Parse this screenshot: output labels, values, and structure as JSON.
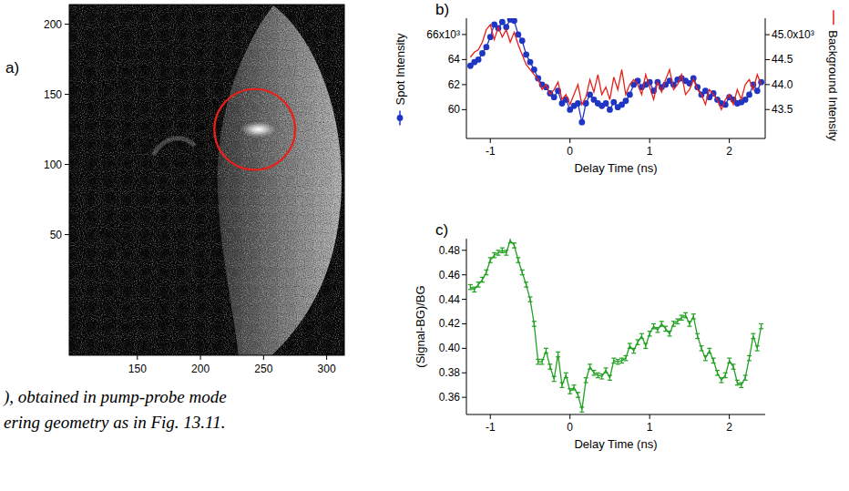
{
  "chart_data": [
    {
      "panel": "a)",
      "type": "image",
      "xlim": [
        96,
        314
      ],
      "ylim": [
        -36,
        214
      ],
      "xticks": [
        150,
        200,
        250,
        300
      ],
      "yticks": [
        50,
        100,
        150,
        200
      ],
      "annotations": [
        {
          "type": "circle",
          "x": 243,
          "y": 125,
          "r": 32,
          "color": "#e8201a"
        }
      ]
    },
    {
      "panel": "b)",
      "type": "line",
      "xlabel": "Delay Time  (ns)",
      "xlim": [
        -1.3,
        2.45
      ],
      "xticks": [
        -1,
        0,
        1,
        2
      ],
      "ylim": [
        57.7,
        67.3
      ],
      "yticks": [
        60,
        62,
        64,
        {
          "value": 66,
          "label": "66x10³"
        }
      ],
      "y2lim": [
        42.92,
        45.33
      ],
      "y2ticks": [
        43.5,
        {
          "value": 44,
          "label": "44.0"
        },
        44.5,
        {
          "value": 45,
          "label": "45.0x10³"
        }
      ],
      "x": [
        -1.25,
        -1.2,
        -1.15,
        -1.1,
        -1.05,
        -1,
        -0.95,
        -0.9,
        -0.85,
        -0.8,
        -0.75,
        -0.7,
        -0.65,
        -0.6,
        -0.55,
        -0.5,
        -0.45,
        -0.4,
        -0.35,
        -0.3,
        -0.25,
        -0.2,
        -0.15,
        -0.1,
        -0.05,
        0,
        0.05,
        0.1,
        0.15,
        0.2,
        0.25,
        0.3,
        0.35,
        0.4,
        0.45,
        0.5,
        0.55,
        0.6,
        0.65,
        0.7,
        0.75,
        0.8,
        0.85,
        0.9,
        0.95,
        1,
        1.05,
        1.1,
        1.15,
        1.2,
        1.25,
        1.3,
        1.35,
        1.4,
        1.45,
        1.5,
        1.55,
        1.6,
        1.65,
        1.7,
        1.75,
        1.8,
        1.85,
        1.9,
        1.95,
        2,
        2.05,
        2.1,
        2.15,
        2.2,
        2.25,
        2.3,
        2.35,
        2.4
      ],
      "series": [
        {
          "name": "Spot Intensity",
          "color": "#1f35c4",
          "marker": "circle",
          "line_style": "solid",
          "values": [
            63.5,
            63.8,
            64.0,
            64.5,
            65.0,
            65.8,
            66.8,
            66.5,
            67.0,
            66.6,
            67.2,
            67.1,
            66.0,
            65.5,
            64.4,
            63.8,
            63.2,
            62.5,
            62.0,
            61.8,
            61.3,
            61.0,
            61.5,
            60.5,
            60.8,
            60.0,
            60.3,
            60.5,
            59.0,
            60.5,
            61.2,
            60.8,
            60.5,
            60.3,
            60.5,
            60.0,
            60.6,
            60.2,
            60.4,
            60.7,
            61.2,
            62.0,
            62.3,
            61.8,
            62.0,
            62.2,
            61.5,
            62.2,
            61.8,
            62.0,
            62.3,
            62.0,
            62.4,
            62.5,
            62.3,
            62.1,
            62.5,
            61.8,
            61.2,
            61.5,
            61.0,
            61.3,
            60.8,
            60.5,
            60.4,
            61.0,
            60.8,
            60.5,
            60.6,
            60.8,
            61.2,
            62.0,
            61.5,
            62.2
          ]
        },
        {
          "name": "Background Intensity",
          "color": "#e8201a",
          "marker": "none",
          "line_style": "solid",
          "axis": "y2",
          "values": [
            44.55,
            44.65,
            44.7,
            44.85,
            45.1,
            45.2,
            44.9,
            45.15,
            44.95,
            45.1,
            44.85,
            45.05,
            44.8,
            44.6,
            44.4,
            44.3,
            44.2,
            44.1,
            43.9,
            44.0,
            43.8,
            43.9,
            44.05,
            43.7,
            43.8,
            43.6,
            43.8,
            44.0,
            43.6,
            43.75,
            44.1,
            43.85,
            44.2,
            43.8,
            43.95,
            43.7,
            44.15,
            43.9,
            44.3,
            43.8,
            44.0,
            44.1,
            44.0,
            43.8,
            44.2,
            43.95,
            43.7,
            44.05,
            43.85,
            44.1,
            44.3,
            43.9,
            44.0,
            44.2,
            43.8,
            43.9,
            44.1,
            43.9,
            43.8,
            43.6,
            43.9,
            43.8,
            43.7,
            43.5,
            43.7,
            43.8,
            43.6,
            43.9,
            43.7,
            44.0,
            44.1,
            43.9,
            44.2,
            44.0
          ]
        }
      ]
    },
    {
      "panel": "c)",
      "type": "line",
      "xlabel": "Delay Time  (ns)",
      "ylabel": "(Signal-BG)/BG",
      "xlim": [
        -1.3,
        2.45
      ],
      "xticks": [
        -1,
        0,
        1,
        2
      ],
      "ylim": [
        0.346,
        0.4895
      ],
      "yticks": [
        0.36,
        0.38,
        {
          "value": 0.4,
          "label": "0.40"
        },
        0.42,
        0.44,
        0.46,
        0.48
      ],
      "x": [
        -1.25,
        -1.2,
        -1.15,
        -1.1,
        -1.05,
        -1,
        -0.95,
        -0.9,
        -0.85,
        -0.8,
        -0.75,
        -0.7,
        -0.65,
        -0.6,
        -0.55,
        -0.5,
        -0.45,
        -0.4,
        -0.35,
        -0.3,
        -0.25,
        -0.2,
        -0.15,
        -0.1,
        -0.05,
        0,
        0.05,
        0.1,
        0.15,
        0.2,
        0.25,
        0.3,
        0.35,
        0.4,
        0.45,
        0.5,
        0.55,
        0.6,
        0.65,
        0.7,
        0.75,
        0.8,
        0.85,
        0.9,
        0.95,
        1,
        1.05,
        1.1,
        1.15,
        1.2,
        1.25,
        1.3,
        1.35,
        1.4,
        1.45,
        1.5,
        1.55,
        1.6,
        1.65,
        1.7,
        1.75,
        1.8,
        1.85,
        1.9,
        1.95,
        2,
        2.05,
        2.1,
        2.15,
        2.2,
        2.25,
        2.3,
        2.35,
        2.4
      ],
      "series": [
        {
          "color": "#22a022",
          "marker": "cap",
          "line_style": "solid",
          "values": [
            0.45,
            0.448,
            0.452,
            0.456,
            0.462,
            0.472,
            0.476,
            0.478,
            0.48,
            0.478,
            0.488,
            0.484,
            0.472,
            0.462,
            0.452,
            0.44,
            0.42,
            0.389,
            0.389,
            0.398,
            0.385,
            0.375,
            0.395,
            0.37,
            0.378,
            0.365,
            0.368,
            0.362,
            0.35,
            0.374,
            0.385,
            0.38,
            0.378,
            0.377,
            0.382,
            0.376,
            0.39,
            0.389,
            0.39,
            0.392,
            0.402,
            0.398,
            0.405,
            0.41,
            0.402,
            0.412,
            0.418,
            0.415,
            0.42,
            0.416,
            0.412,
            0.42,
            0.422,
            0.425,
            0.427,
            0.42,
            0.426,
            0.41,
            0.4,
            0.392,
            0.398,
            0.39,
            0.38,
            0.374,
            0.378,
            0.39,
            0.385,
            0.372,
            0.37,
            0.376,
            0.392,
            0.41,
            0.4,
            0.418
          ],
          "errors": [
            0.002,
            0.002,
            0.002,
            0.002,
            0.002,
            0.002,
            0.002,
            0.002,
            0.002,
            0.002,
            0.002,
            0.002,
            0.002,
            0.002,
            0.002,
            0.002,
            0.002,
            0.002,
            0.002,
            0.002,
            0.002,
            0.002,
            0.002,
            0.002,
            0.002,
            0.002,
            0.002,
            0.002,
            0.002,
            0.002,
            0.002,
            0.002,
            0.002,
            0.002,
            0.002,
            0.002,
            0.002,
            0.002,
            0.002,
            0.002,
            0.002,
            0.002,
            0.002,
            0.002,
            0.002,
            0.002,
            0.002,
            0.002,
            0.002,
            0.002,
            0.002,
            0.002,
            0.002,
            0.002,
            0.002,
            0.002,
            0.002,
            0.002,
            0.002,
            0.002,
            0.002,
            0.002,
            0.002,
            0.002,
            0.002,
            0.002,
            0.002,
            0.002,
            0.002,
            0.002,
            0.002,
            0.002,
            0.002,
            0.002
          ]
        }
      ]
    }
  ],
  "caption": [
    "), obtained in pump-probe mode",
    "ering geometry as in Fig. 13.11."
  ]
}
